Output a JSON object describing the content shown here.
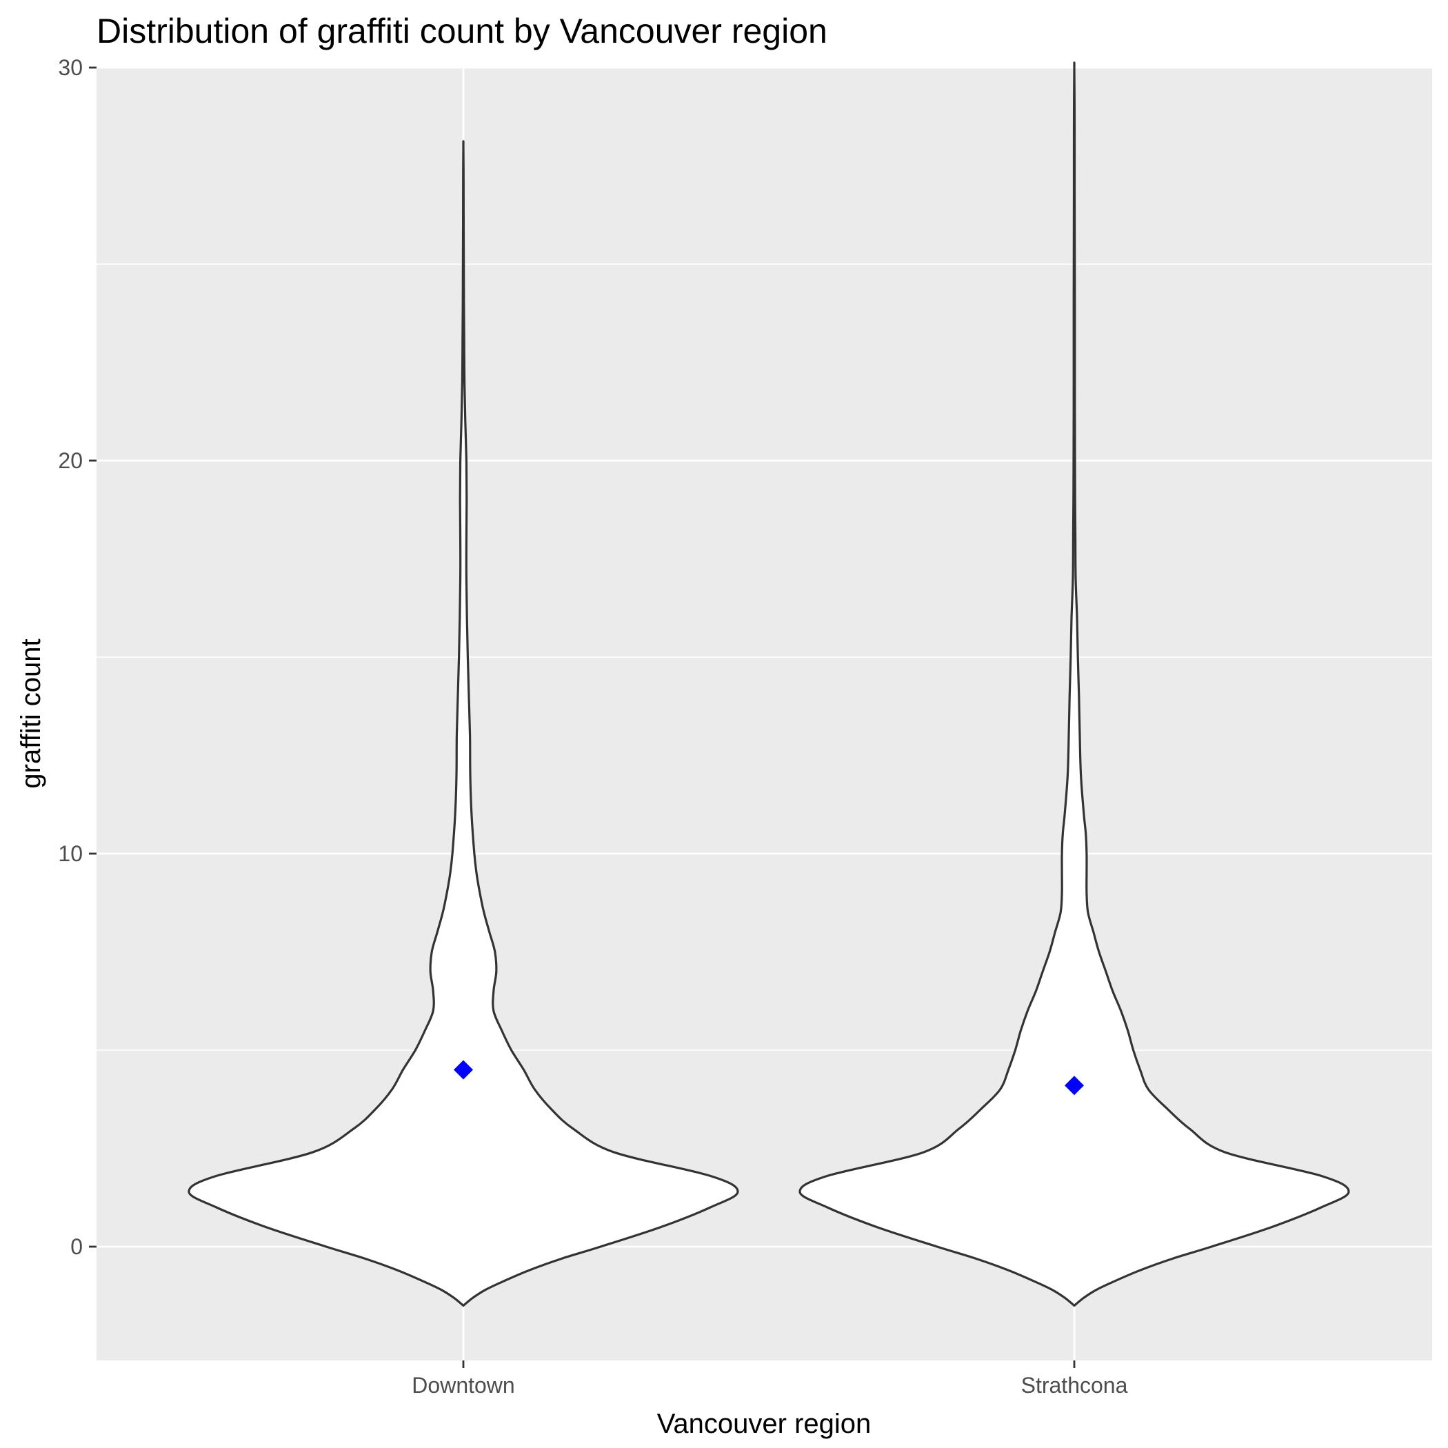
{
  "chart_data": {
    "type": "violin",
    "title": "Distribution of graffiti count by Vancouver region",
    "xlabel": "Vancouver region",
    "ylabel": "graffiti count",
    "categories": [
      "Downtown",
      "Strathcona"
    ],
    "ylim": [
      -3,
      30
    ],
    "y_ticks": [
      0,
      10,
      20,
      30
    ],
    "y_tick_labels": [
      "0",
      "10",
      "20",
      "30"
    ],
    "grid": true,
    "legend": "none",
    "background_color": "#EBEBEB",
    "grid_color": "#FFFFFF",
    "violin_fill": "#FFFFFF",
    "violin_outline": "#333333",
    "mean_marker": {
      "shape": "diamond",
      "color": "#0000FF"
    },
    "series": [
      {
        "category": "Downtown",
        "mean": 4.5,
        "y_min": -1.5,
        "y_max": 28,
        "density_profile": [
          [
            -1.5,
            0.0
          ],
          [
            -1.3,
            0.035
          ],
          [
            -1.1,
            0.08
          ],
          [
            -0.9,
            0.14
          ],
          [
            -0.6,
            0.24
          ],
          [
            -0.3,
            0.36
          ],
          [
            0.0,
            0.5
          ],
          [
            0.5,
            0.72
          ],
          [
            1.0,
            0.9
          ],
          [
            1.4,
            1.0
          ],
          [
            1.8,
            0.9
          ],
          [
            2.4,
            0.55
          ],
          [
            3.0,
            0.4
          ],
          [
            3.5,
            0.32
          ],
          [
            4.0,
            0.26
          ],
          [
            4.5,
            0.22
          ],
          [
            5.0,
            0.175
          ],
          [
            5.5,
            0.14
          ],
          [
            6.0,
            0.11
          ],
          [
            6.5,
            0.11
          ],
          [
            7.0,
            0.12
          ],
          [
            7.5,
            0.115
          ],
          [
            8.0,
            0.095
          ],
          [
            8.5,
            0.075
          ],
          [
            9.0,
            0.06
          ],
          [
            9.5,
            0.048
          ],
          [
            10.0,
            0.04
          ],
          [
            11.0,
            0.03
          ],
          [
            12.0,
            0.025
          ],
          [
            13.0,
            0.024
          ],
          [
            14.0,
            0.02
          ],
          [
            15.0,
            0.016
          ],
          [
            16.0,
            0.013
          ],
          [
            17.0,
            0.011
          ],
          [
            18.0,
            0.011
          ],
          [
            19.0,
            0.012
          ],
          [
            20.0,
            0.011
          ],
          [
            21.0,
            0.007
          ],
          [
            22.0,
            0.004
          ],
          [
            23.0,
            0.003
          ],
          [
            24.0,
            0.002
          ],
          [
            25.0,
            0.0015
          ],
          [
            26.0,
            0.001
          ],
          [
            27.0,
            0.0008
          ],
          [
            28.0,
            0.0
          ]
        ]
      },
      {
        "category": "Strathcona",
        "mean": 4.1,
        "y_min": -1.5,
        "y_max": 30,
        "density_profile": [
          [
            -1.5,
            0.0
          ],
          [
            -1.3,
            0.035
          ],
          [
            -1.1,
            0.08
          ],
          [
            -0.9,
            0.14
          ],
          [
            -0.6,
            0.24
          ],
          [
            -0.3,
            0.36
          ],
          [
            0.0,
            0.5
          ],
          [
            0.5,
            0.72
          ],
          [
            1.0,
            0.9
          ],
          [
            1.4,
            1.0
          ],
          [
            1.8,
            0.9
          ],
          [
            2.4,
            0.55
          ],
          [
            3.0,
            0.42
          ],
          [
            3.5,
            0.34
          ],
          [
            4.0,
            0.27
          ],
          [
            4.5,
            0.24
          ],
          [
            5.0,
            0.215
          ],
          [
            5.5,
            0.195
          ],
          [
            6.0,
            0.17
          ],
          [
            6.5,
            0.14
          ],
          [
            7.0,
            0.115
          ],
          [
            7.5,
            0.09
          ],
          [
            8.0,
            0.07
          ],
          [
            8.5,
            0.05
          ],
          [
            9.0,
            0.045
          ],
          [
            9.5,
            0.045
          ],
          [
            10.0,
            0.045
          ],
          [
            10.5,
            0.042
          ],
          [
            11.0,
            0.035
          ],
          [
            12.0,
            0.024
          ],
          [
            13.0,
            0.02
          ],
          [
            14.0,
            0.017
          ],
          [
            15.0,
            0.013
          ],
          [
            16.0,
            0.01
          ],
          [
            17.0,
            0.005
          ],
          [
            18.0,
            0.004
          ],
          [
            19.0,
            0.003
          ],
          [
            20.0,
            0.0025
          ],
          [
            22.0,
            0.002
          ],
          [
            24.0,
            0.002
          ],
          [
            26.0,
            0.0015
          ],
          [
            28.0,
            0.0012
          ],
          [
            29.0,
            0.001
          ],
          [
            30.0,
            0.0
          ]
        ]
      }
    ]
  }
}
